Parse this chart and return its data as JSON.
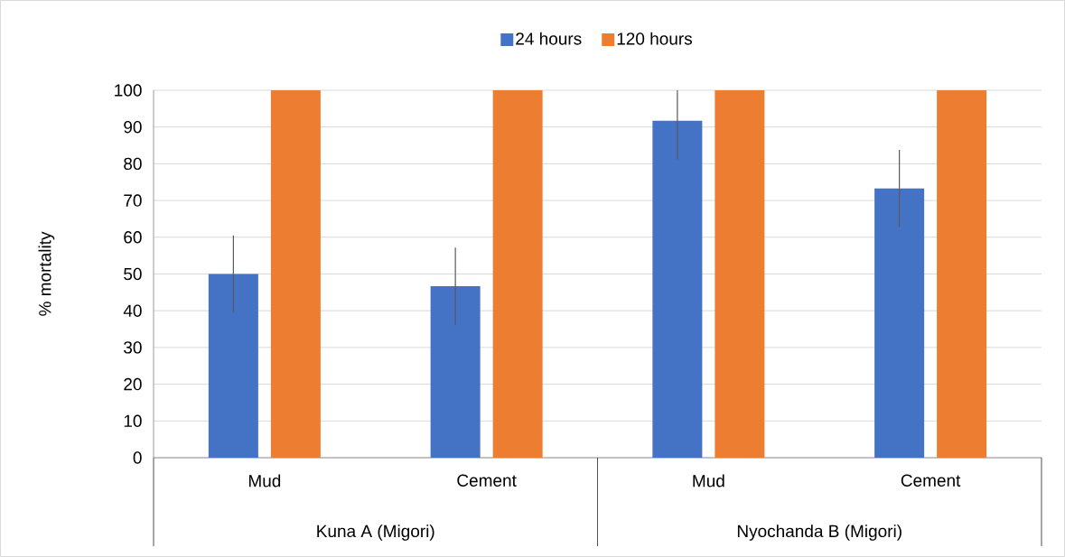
{
  "chart_data": {
    "type": "bar",
    "ylabel": "% mortality",
    "categories": [
      "Mud",
      "Cement",
      "Mud",
      "Cement"
    ],
    "series": [
      {
        "name": "24 hours",
        "color": "#4472c4",
        "values": [
          50,
          46.7,
          91.7,
          73.3
        ],
        "errors": [
          10.5,
          10.5,
          [
            81.2,
            100
          ],
          10.5
        ]
      },
      {
        "name": "120 hours",
        "color": "#ed7d31",
        "values": [
          100,
          100,
          100,
          100
        ],
        "errors": [
          0,
          0,
          0,
          0
        ]
      }
    ],
    "annotations": [
      "Kuna A (Migori)",
      "Nyochanda B (Migori)"
    ],
    "ylim": [
      0,
      100
    ],
    "yticks": [
      0,
      10,
      20,
      30,
      40,
      50,
      60,
      70,
      80,
      90,
      100
    ],
    "grid": "y",
    "legend": "top"
  }
}
